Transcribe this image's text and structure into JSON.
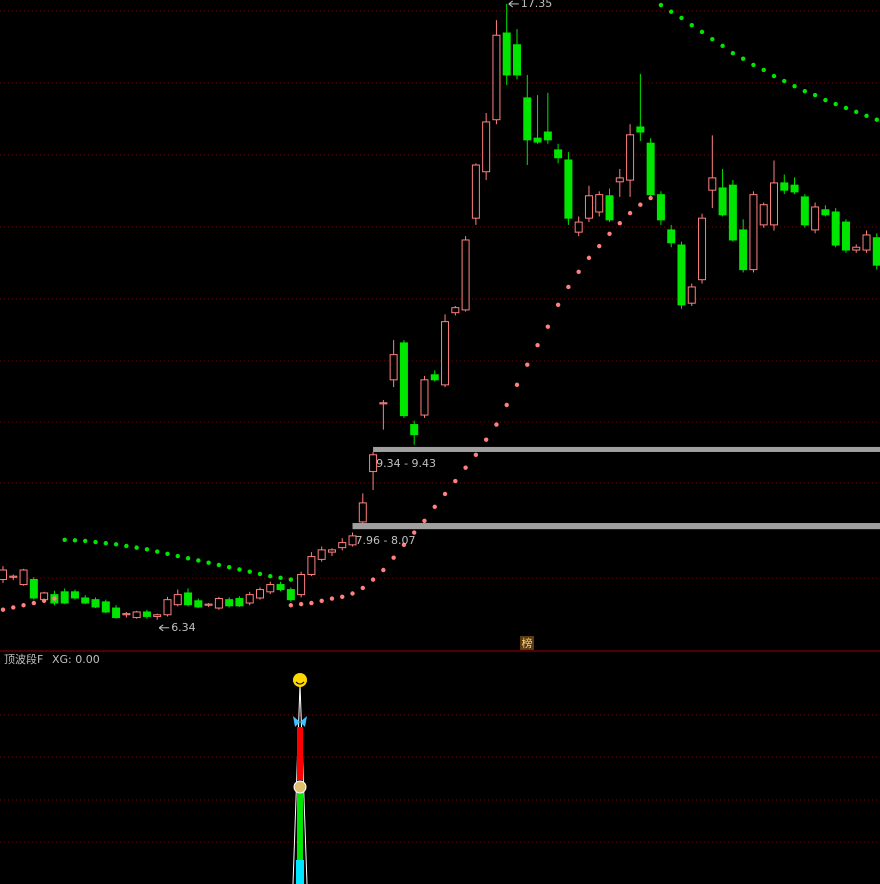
{
  "chart_data": {
    "type": "candlestick",
    "ylim": [
      5.8,
      17.42
    ],
    "ohlc": [
      [
        7.06,
        7.3,
        7.0,
        7.23
      ],
      [
        7.1,
        7.15,
        7.05,
        7.12
      ],
      [
        6.97,
        7.25,
        6.95,
        7.23
      ],
      [
        7.06,
        7.1,
        6.7,
        6.73
      ],
      [
        6.7,
        6.84,
        6.66,
        6.82
      ],
      [
        6.79,
        6.86,
        6.6,
        6.64
      ],
      [
        6.84,
        6.9,
        6.62,
        6.64
      ],
      [
        6.84,
        6.88,
        6.7,
        6.73
      ],
      [
        6.73,
        6.78,
        6.62,
        6.64
      ],
      [
        6.7,
        6.74,
        6.55,
        6.57
      ],
      [
        6.66,
        6.7,
        6.46,
        6.48
      ],
      [
        6.55,
        6.6,
        6.36,
        6.38
      ],
      [
        6.43,
        6.48,
        6.38,
        6.45
      ],
      [
        6.38,
        6.5,
        6.36,
        6.48
      ],
      [
        6.48,
        6.52,
        6.36,
        6.4
      ],
      [
        6.4,
        6.45,
        6.34,
        6.43
      ],
      [
        6.43,
        6.75,
        6.4,
        6.7
      ],
      [
        6.61,
        6.88,
        6.58,
        6.79
      ],
      [
        6.82,
        6.9,
        6.58,
        6.61
      ],
      [
        6.68,
        6.72,
        6.55,
        6.57
      ],
      [
        6.6,
        6.64,
        6.57,
        6.62
      ],
      [
        6.55,
        6.75,
        6.52,
        6.72
      ],
      [
        6.7,
        6.74,
        6.56,
        6.59
      ],
      [
        6.72,
        6.76,
        6.57,
        6.59
      ],
      [
        6.64,
        6.84,
        6.6,
        6.79
      ],
      [
        6.73,
        6.92,
        6.7,
        6.88
      ],
      [
        6.84,
        7.02,
        6.8,
        6.97
      ],
      [
        6.97,
        7.02,
        6.85,
        6.88
      ],
      [
        6.88,
        6.92,
        6.66,
        6.7
      ],
      [
        6.79,
        7.2,
        6.74,
        7.15
      ],
      [
        7.15,
        7.55,
        7.12,
        7.47
      ],
      [
        7.42,
        7.65,
        7.38,
        7.59
      ],
      [
        7.55,
        7.62,
        7.48,
        7.59
      ],
      [
        7.63,
        7.8,
        7.58,
        7.72
      ],
      [
        7.68,
        7.9,
        7.65,
        7.84
      ],
      [
        8.09,
        8.6,
        8.0,
        8.43
      ],
      [
        8.99,
        9.34,
        8.66,
        9.29
      ],
      [
        10.2,
        10.27,
        9.74,
        10.22
      ],
      [
        10.63,
        11.34,
        10.5,
        11.08
      ],
      [
        11.29,
        11.34,
        9.95,
        9.99
      ],
      [
        9.83,
        9.9,
        9.47,
        9.65
      ],
      [
        10.0,
        10.7,
        9.95,
        10.63
      ],
      [
        10.72,
        10.8,
        10.6,
        10.63
      ],
      [
        10.54,
        11.8,
        10.5,
        11.67
      ],
      [
        11.83,
        11.95,
        11.78,
        11.92
      ],
      [
        11.88,
        13.2,
        11.85,
        13.13
      ],
      [
        13.52,
        14.5,
        13.4,
        14.47
      ],
      [
        14.35,
        15.4,
        14.2,
        15.24
      ],
      [
        15.28,
        17.06,
        15.2,
        16.79
      ],
      [
        16.83,
        17.35,
        15.9,
        16.08
      ],
      [
        16.62,
        16.9,
        16.0,
        16.08
      ],
      [
        15.67,
        16.08,
        14.47,
        14.92
      ],
      [
        14.95,
        15.72,
        14.85,
        14.88
      ],
      [
        15.06,
        15.76,
        14.85,
        14.92
      ],
      [
        14.74,
        14.85,
        14.5,
        14.6
      ],
      [
        14.56,
        14.7,
        13.4,
        13.52
      ],
      [
        13.27,
        13.55,
        13.2,
        13.45
      ],
      [
        13.52,
        14.1,
        13.45,
        13.92
      ],
      [
        13.63,
        14.0,
        13.55,
        13.94
      ],
      [
        13.92,
        14.05,
        13.45,
        13.49
      ],
      [
        14.17,
        14.4,
        13.9,
        14.24
      ],
      [
        14.2,
        15.2,
        13.9,
        15.01
      ],
      [
        15.15,
        16.1,
        14.9,
        15.06
      ],
      [
        14.86,
        14.95,
        13.9,
        13.94
      ],
      [
        13.94,
        14.0,
        13.4,
        13.49
      ],
      [
        13.31,
        13.4,
        13.0,
        13.08
      ],
      [
        13.04,
        13.1,
        11.9,
        11.97
      ],
      [
        12.0,
        12.35,
        11.95,
        12.29
      ],
      [
        12.42,
        13.6,
        12.35,
        13.52
      ],
      [
        14.02,
        15.0,
        13.7,
        14.24
      ],
      [
        14.06,
        14.4,
        13.55,
        13.58
      ],
      [
        14.11,
        14.2,
        13.1,
        13.13
      ],
      [
        13.31,
        13.5,
        12.55,
        12.6
      ],
      [
        12.6,
        14.0,
        12.55,
        13.94
      ],
      [
        13.4,
        13.8,
        13.35,
        13.76
      ],
      [
        13.4,
        14.55,
        13.3,
        14.15
      ],
      [
        14.15,
        14.3,
        13.95,
        14.02
      ],
      [
        14.11,
        14.25,
        13.95,
        13.99
      ],
      [
        13.9,
        13.95,
        13.35,
        13.4
      ],
      [
        13.31,
        13.8,
        13.25,
        13.72
      ],
      [
        13.67,
        13.75,
        13.55,
        13.58
      ],
      [
        13.63,
        13.7,
        13.0,
        13.04
      ],
      [
        13.45,
        13.5,
        12.9,
        12.95
      ],
      [
        12.95,
        13.05,
        12.9,
        13.0
      ],
      [
        12.95,
        13.3,
        12.9,
        13.22
      ],
      [
        13.17,
        13.25,
        12.6,
        12.68
      ]
    ],
    "up_color": "#ff8080",
    "down_color": "#00e600",
    "overlays": [
      {
        "color": "#ff8080",
        "values": [
          6.52,
          6.56,
          6.6,
          6.64,
          6.68,
          6.72,
          null,
          null,
          null,
          null,
          null,
          null,
          null,
          null,
          null,
          null,
          null,
          null,
          null,
          null,
          null,
          null,
          null,
          null,
          null,
          null,
          null,
          null,
          6.6,
          6.62,
          6.64,
          6.68,
          6.72,
          6.75,
          6.81,
          6.91,
          7.06,
          7.23,
          7.45,
          7.68,
          7.9,
          8.11,
          8.36,
          8.59,
          8.82,
          9.06,
          9.29,
          9.56,
          9.83,
          10.18,
          10.54,
          10.9,
          11.25,
          11.58,
          11.97,
          12.29,
          12.56,
          12.81,
          13.02,
          13.24,
          13.43,
          13.61,
          13.76,
          13.88,
          null,
          null,
          null,
          null,
          null,
          null,
          null,
          null,
          null,
          null,
          null,
          null,
          null,
          null,
          null,
          null,
          null,
          null,
          null,
          null,
          null,
          null
        ]
      },
      {
        "color": "#00e600",
        "values": [
          null,
          null,
          null,
          null,
          null,
          null,
          7.77,
          7.76,
          7.75,
          7.73,
          7.71,
          7.69,
          7.66,
          7.63,
          7.6,
          7.56,
          7.52,
          7.48,
          7.44,
          7.4,
          7.36,
          7.32,
          7.28,
          7.24,
          7.2,
          7.16,
          7.12,
          7.09,
          7.06,
          null,
          null,
          null,
          null,
          null,
          null,
          null,
          null,
          null,
          null,
          null,
          null,
          null,
          null,
          null,
          null,
          null,
          null,
          null,
          null,
          null,
          null,
          null,
          null,
          null,
          null,
          null,
          null,
          null,
          null,
          null,
          null,
          null,
          null,
          null,
          17.33,
          17.21,
          17.1,
          16.97,
          16.85,
          16.72,
          16.6,
          16.47,
          16.37,
          16.26,
          16.17,
          16.06,
          15.97,
          15.88,
          15.79,
          15.72,
          15.63,
          15.56,
          15.49,
          15.42,
          15.35,
          15.28
        ]
      }
    ],
    "annotations": [
      {
        "value": 17.35,
        "at": 49
      },
      {
        "value": 6.34,
        "at": 15
      }
    ],
    "levels": [
      {
        "low": 9.34,
        "high": 9.43,
        "label": "9.34 - 9.43",
        "from": 36
      },
      {
        "low": 7.96,
        "high": 8.07,
        "label": "7.96 - 8.07",
        "from": 34
      }
    ],
    "badge": "榜",
    "indicator": {
      "name": "顶波段F",
      "readout": "XG: 0.00"
    }
  }
}
